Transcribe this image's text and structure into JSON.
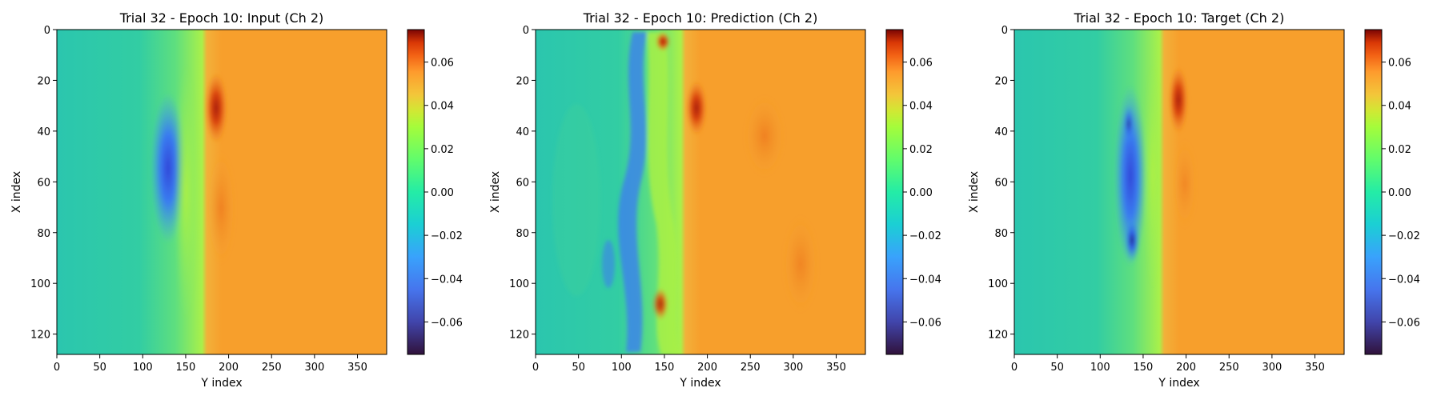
{
  "chart_data": [
    {
      "type": "heatmap",
      "title": "Trial 32 - Epoch 10: Input (Ch 2)",
      "xlabel": "Y index",
      "ylabel": "X index",
      "xlim": [
        0,
        384
      ],
      "ylim": [
        128,
        0
      ],
      "xticks": [
        0,
        50,
        100,
        150,
        200,
        250,
        300,
        350
      ],
      "yticks": [
        0,
        20,
        40,
        60,
        80,
        100,
        120
      ],
      "colormap": "turbo",
      "colorbar": {
        "range": [
          -0.075,
          0.075
        ],
        "ticks": [
          0.06,
          0.04,
          0.02,
          0.0,
          -0.02,
          -0.04,
          -0.06
        ],
        "tick_labels": [
          "0.06",
          "0.04",
          "0.02",
          "0.00",
          "−0.02",
          "−0.04",
          "−0.06"
        ]
      }
    },
    {
      "type": "heatmap",
      "title": "Trial 32 - Epoch 10: Prediction (Ch 2)",
      "xlabel": "Y index",
      "ylabel": "X index",
      "xlim": [
        0,
        384
      ],
      "ylim": [
        128,
        0
      ],
      "xticks": [
        0,
        50,
        100,
        150,
        200,
        250,
        300,
        350
      ],
      "yticks": [
        0,
        20,
        40,
        60,
        80,
        100,
        120
      ],
      "colormap": "turbo",
      "colorbar": {
        "range": [
          -0.075,
          0.075
        ],
        "ticks": [
          0.06,
          0.04,
          0.02,
          0.0,
          -0.02,
          -0.04,
          -0.06
        ],
        "tick_labels": [
          "0.06",
          "0.04",
          "0.02",
          "0.00",
          "−0.02",
          "−0.04",
          "−0.06"
        ]
      }
    },
    {
      "type": "heatmap",
      "title": "Trial 32 - Epoch 10: Target (Ch 2)",
      "xlabel": "Y index",
      "ylabel": "X index",
      "xlim": [
        0,
        384
      ],
      "ylim": [
        128,
        0
      ],
      "xticks": [
        0,
        50,
        100,
        150,
        200,
        250,
        300,
        350
      ],
      "yticks": [
        0,
        20,
        40,
        60,
        80,
        100,
        120
      ],
      "colormap": "turbo",
      "colorbar": {
        "range": [
          -0.075,
          0.075
        ],
        "ticks": [
          0.06,
          0.04,
          0.02,
          0.0,
          -0.02,
          -0.04,
          -0.06
        ],
        "tick_labels": [
          "0.06",
          "0.04",
          "0.02",
          "0.00",
          "−0.02",
          "−0.04",
          "−0.06"
        ]
      }
    }
  ],
  "colors": {
    "left_field": "#2fc9a6",
    "front_band": "#a6f545",
    "right_field": "#f7a02a",
    "negative_core": "#2e5cf0",
    "positive_core": "#b8280b"
  }
}
